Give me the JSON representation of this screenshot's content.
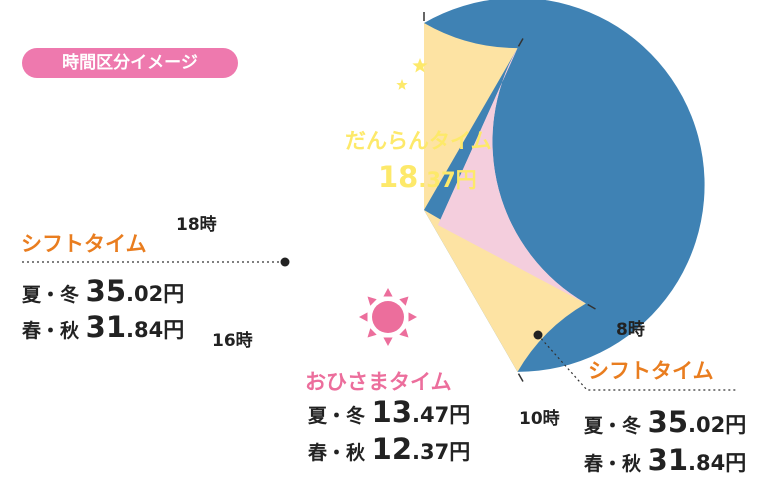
{
  "badge": {
    "label": "時間区分イメージ",
    "color": "#ee79ae"
  },
  "colors": {
    "dannran": "#3f82b4",
    "shift": "#fde3a3",
    "ohisama": "#f4cedd",
    "moon": "#fde96a",
    "sun": "#ec6e9c",
    "shift_text": "#e97d1f",
    "ohisama_text": "#ec6e9c",
    "dannran_text": "#fde96a"
  },
  "icons": {
    "moon": "crescent-moon-icon",
    "stars": "star-icon",
    "sun": "sun-icon"
  },
  "chart_data": {
    "type": "pie",
    "unit": "時",
    "segments": [
      {
        "name": "だんらんタイム",
        "start_hour": 18,
        "end_hour": 8
      },
      {
        "name": "シフトタイム",
        "start_hour": 8,
        "end_hour": 10
      },
      {
        "name": "おひさまタイム",
        "start_hour": 10,
        "end_hour": 16
      },
      {
        "name": "シフトタイム",
        "start_hour": 16,
        "end_hour": 18
      }
    ],
    "hour_labels": [
      "18時",
      "8時",
      "10時",
      "16時"
    ],
    "dannran": {
      "name": "だんらんタイム",
      "price_int": "18",
      "price_dec": ".37",
      "unit": "円"
    },
    "ohisama": {
      "name": "おひさまタイム",
      "prices": [
        {
          "season": "夏・冬",
          "int": "13",
          "dec": ".47",
          "unit": "円"
        },
        {
          "season": "春・秋",
          "int": "12",
          "dec": ".37",
          "unit": "円"
        }
      ]
    },
    "shift_left": {
      "name": "シフトタイム",
      "prices": [
        {
          "season": "夏・冬",
          "int": "35",
          "dec": ".02",
          "unit": "円"
        },
        {
          "season": "春・秋",
          "int": "31",
          "dec": ".84",
          "unit": "円"
        }
      ]
    },
    "shift_right": {
      "name": "シフトタイム",
      "prices": [
        {
          "season": "夏・冬",
          "int": "35",
          "dec": ".02",
          "unit": "円"
        },
        {
          "season": "春・秋",
          "int": "31",
          "dec": ".84",
          "unit": "円"
        }
      ]
    }
  }
}
